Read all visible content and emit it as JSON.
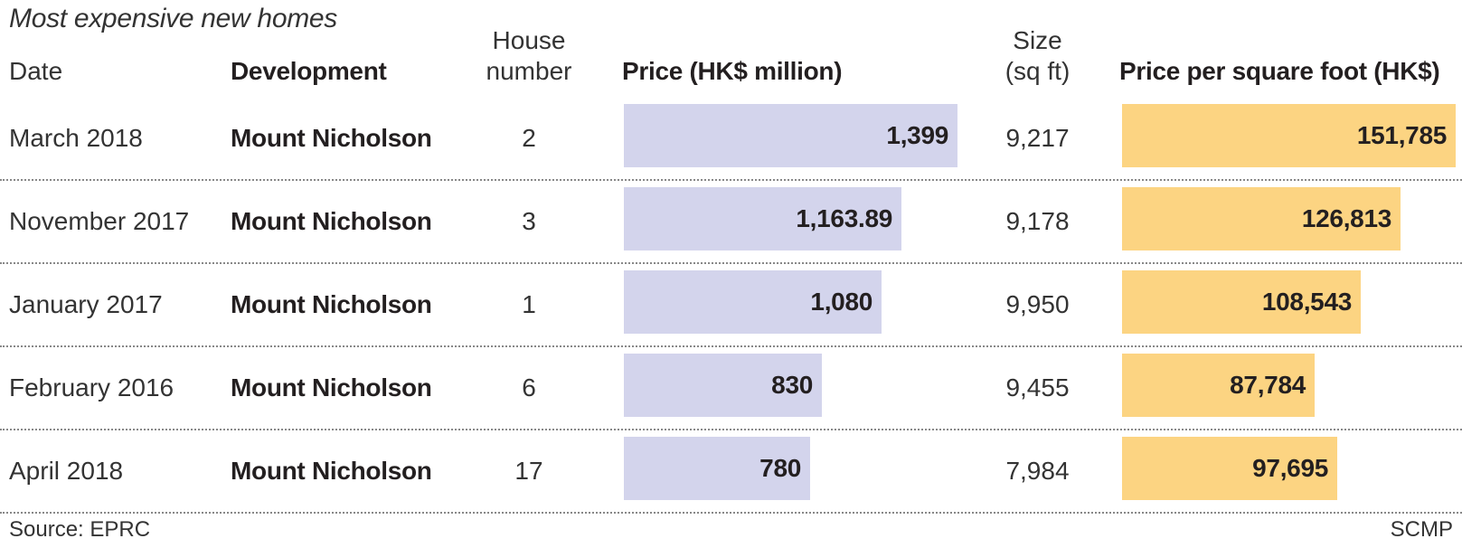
{
  "title": "Most expensive new homes",
  "headers": {
    "date": "Date",
    "development": "Development",
    "house_line1": "House",
    "house_line2": "number",
    "price": "Price (HK$ million)",
    "size_line1": "Size",
    "size_line2": "(sq ft)",
    "ppsf": "Price per square foot (HK$)"
  },
  "chart_data": {
    "type": "table",
    "columns": [
      "Date",
      "Development",
      "House number",
      "Price (HK$ million)",
      "Size (sq ft)",
      "Price per square foot (HK$)"
    ],
    "rows": [
      {
        "date": "March 2018",
        "development": "Mount Nicholson",
        "house": "2",
        "price": 1399,
        "price_label": "1,399",
        "size": "9,217",
        "ppsf": 151785,
        "ppsf_label": "151,785"
      },
      {
        "date": "November 2017",
        "development": "Mount Nicholson",
        "house": "3",
        "price": 1163.89,
        "price_label": "1,163.89",
        "size": "9,178",
        "ppsf": 126813,
        "ppsf_label": "126,813"
      },
      {
        "date": "January 2017",
        "development": "Mount Nicholson",
        "house": "1",
        "price": 1080,
        "price_label": "1,080",
        "size": "9,950",
        "ppsf": 108543,
        "ppsf_label": "108,543"
      },
      {
        "date": "February 2016",
        "development": "Mount Nicholson",
        "house": "6",
        "price": 830,
        "price_label": "830",
        "size": "9,455",
        "ppsf": 87784,
        "ppsf_label": "87,784"
      },
      {
        "date": "April 2018",
        "development": "Mount Nicholson",
        "house": "17",
        "price": 780,
        "price_label": "780",
        "size": "7,984",
        "ppsf": 97695,
        "ppsf_label": "97,695"
      }
    ],
    "colors": {
      "price_bar": "#d3d4ec",
      "ppsf_bar": "#fcd482"
    }
  },
  "footer": {
    "source": "Source: EPRC",
    "credit": "SCMP"
  }
}
